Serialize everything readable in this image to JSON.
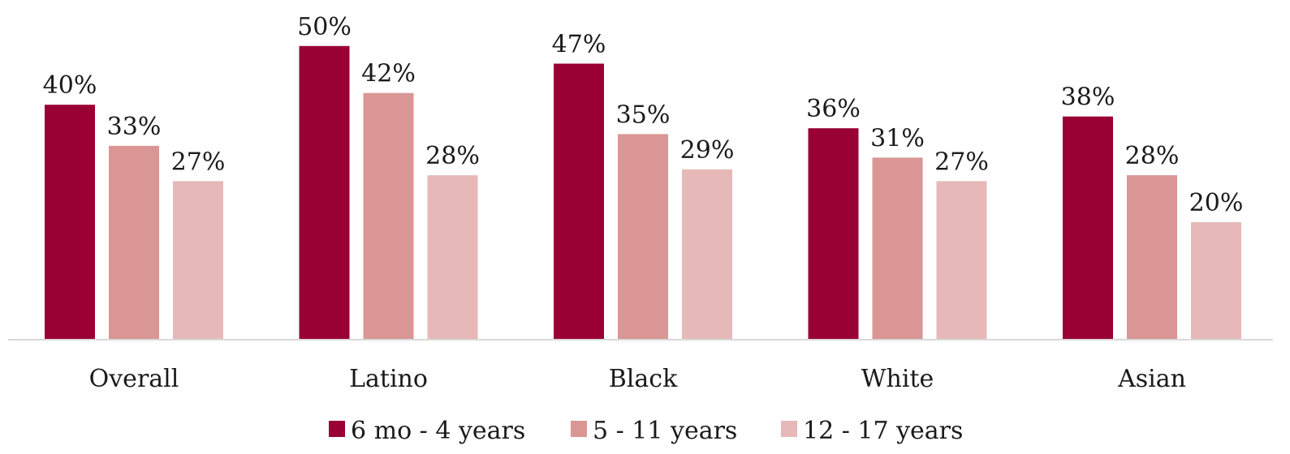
{
  "chart_data": {
    "type": "bar",
    "title": "",
    "xlabel": "",
    "ylabel": "",
    "ylim": [
      0,
      55
    ],
    "grid": false,
    "legend_position": "bottom",
    "value_suffix": "%",
    "categories": [
      "Overall",
      "Latino",
      "Black",
      "White",
      "Asian"
    ],
    "series": [
      {
        "name": "6 mo - 4 years",
        "color": "#990033",
        "values": [
          40,
          50,
          47,
          36,
          38
        ]
      },
      {
        "name": "5 - 11 years",
        "color": "#d99694",
        "values": [
          33,
          42,
          35,
          31,
          28
        ]
      },
      {
        "name": "12 - 17 years",
        "color": "#e6b9b8",
        "values": [
          27,
          28,
          29,
          27,
          20
        ]
      }
    ]
  }
}
